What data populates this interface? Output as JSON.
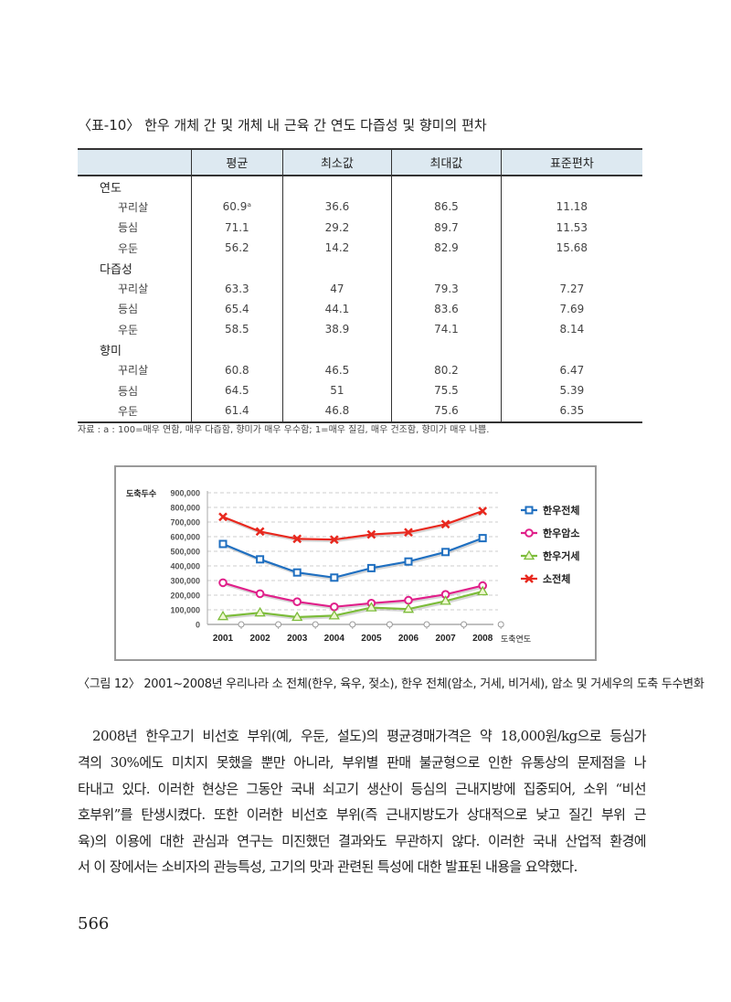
{
  "table": {
    "title": "〈표-10〉 한우 개체 간 및 개체 내 근육 간 연도 다즙성 및 향미의 편차",
    "headers": [
      "",
      "평균",
      "최소값",
      "최대값",
      "표준편차"
    ],
    "groups": [
      {
        "name": "연도",
        "rows": [
          [
            "꾸리살",
            "60.9ᵃ",
            "36.6",
            "86.5",
            "11.18"
          ],
          [
            "등심",
            "71.1",
            "29.2",
            "89.7",
            "11.53"
          ],
          [
            "우둔",
            "56.2",
            "14.2",
            "82.9",
            "15.68"
          ]
        ]
      },
      {
        "name": "다즙성",
        "rows": [
          [
            "꾸리살",
            "63.3",
            "47",
            "79.3",
            "7.27"
          ],
          [
            "등심",
            "65.4",
            "44.1",
            "83.6",
            "7.69"
          ],
          [
            "우둔",
            "58.5",
            "38.9",
            "74.1",
            "8.14"
          ]
        ]
      },
      {
        "name": "향미",
        "rows": [
          [
            "꾸리살",
            "60.8",
            "46.5",
            "80.2",
            "6.47"
          ],
          [
            "등심",
            "64.5",
            "51",
            "75.5",
            "5.39"
          ],
          [
            "우둔",
            "61.4",
            "46.8",
            "75.6",
            "6.35"
          ]
        ]
      }
    ],
    "footnote": "자료 : a : 100=매우 연함, 매우 다즙함, 향미가 매우 우수함; 1=매우 질김, 매우 건조함, 향미가 매우 나쁨."
  },
  "chart_data": {
    "type": "line",
    "ylabel": "도축두수",
    "xlabel": "도축연도",
    "x": [
      "2001",
      "2002",
      "2003",
      "2004",
      "2005",
      "2006",
      "2007",
      "2008"
    ],
    "ylim": [
      0,
      900000
    ],
    "yticks": [
      "0",
      "100,000",
      "200,000",
      "300,000",
      "400,000",
      "500,000",
      "600,000",
      "700,000",
      "800,000",
      "900,000"
    ],
    "grid": true,
    "legend_position": "right",
    "series": [
      {
        "name": "한우전체",
        "color": "#1f6fc0",
        "marker": "square",
        "values": [
          550000,
          445000,
          355000,
          320000,
          385000,
          430000,
          495000,
          590000
        ]
      },
      {
        "name": "한우암소",
        "color": "#e0208a",
        "marker": "circle",
        "values": [
          285000,
          210000,
          155000,
          120000,
          145000,
          165000,
          205000,
          265000
        ]
      },
      {
        "name": "한우거세",
        "color": "#7cbc3a",
        "marker": "triangle",
        "values": [
          55000,
          80000,
          50000,
          60000,
          115000,
          105000,
          160000,
          225000
        ]
      },
      {
        "name": "소전체",
        "color": "#e8281e",
        "marker": "x",
        "values": [
          735000,
          635000,
          585000,
          580000,
          615000,
          630000,
          685000,
          775000
        ]
      }
    ]
  },
  "caption": "〈그림 12〉 2001~2008년 우리나라 소 전체(한우, 육우, 젖소), 한우 전체(암소, 거세, 비거세), 암소 및 거세우의 도축 두수변화",
  "paragraph": [
    "2008년 한우고기 비선호 부위(예, 우둔, 설도)의 평균경매가격은 약 18,000원/kg으로 등심가",
    "격의 30%에도 미치지 못했을 뿐만 아니라, 부위별 판매 불균형으로 인한 유통상의 문제점을 나",
    "타내고 있다. 이러한 현상은 그동안 국내 쇠고기 생산이 등심의 근내지방에 집중되어, 소위 “비선",
    "호부위”를 탄생시켰다. 또한 이러한 비선호 부위(즉 근내지방도가 상대적으로 낮고 질긴 부위 근",
    "육)의 이용에 대한 관심과 연구는 미진했던 결과와도 무관하지 않다. 이러한 국내 산업적 환경에",
    "서 이 장에서는 소비자의 관능특성, 고기의 맛과 관련된 특성에 대한 발표된 내용을 요약했다."
  ],
  "page_number": "566"
}
